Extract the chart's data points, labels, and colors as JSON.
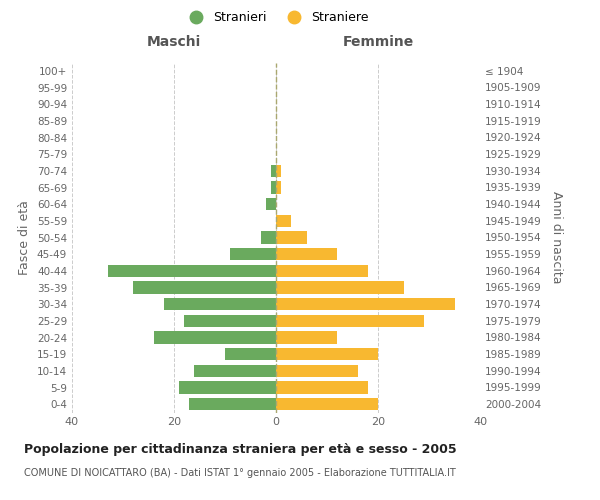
{
  "age_groups": [
    "0-4",
    "5-9",
    "10-14",
    "15-19",
    "20-24",
    "25-29",
    "30-34",
    "35-39",
    "40-44",
    "45-49",
    "50-54",
    "55-59",
    "60-64",
    "65-69",
    "70-74",
    "75-79",
    "80-84",
    "85-89",
    "90-94",
    "95-99",
    "100+"
  ],
  "birth_years": [
    "2000-2004",
    "1995-1999",
    "1990-1994",
    "1985-1989",
    "1980-1984",
    "1975-1979",
    "1970-1974",
    "1965-1969",
    "1960-1964",
    "1955-1959",
    "1950-1954",
    "1945-1949",
    "1940-1944",
    "1935-1939",
    "1930-1934",
    "1925-1929",
    "1920-1924",
    "1915-1919",
    "1910-1914",
    "1905-1909",
    "≤ 1904"
  ],
  "maschi": [
    17,
    19,
    16,
    10,
    24,
    18,
    22,
    28,
    33,
    9,
    3,
    0,
    2,
    1,
    1,
    0,
    0,
    0,
    0,
    0,
    0
  ],
  "femmine": [
    20,
    18,
    16,
    20,
    12,
    29,
    35,
    25,
    18,
    12,
    6,
    3,
    0,
    1,
    1,
    0,
    0,
    0,
    0,
    0,
    0
  ],
  "color_maschi": "#6aaa5e",
  "color_femmine": "#f8b830",
  "xlim": 40,
  "title": "Popolazione per cittadinanza straniera per età e sesso - 2005",
  "subtitle": "COMUNE DI NOICATTARO (BA) - Dati ISTAT 1° gennaio 2005 - Elaborazione TUTTITALIA.IT",
  "ylabel_left": "Fasce di età",
  "ylabel_right": "Anni di nascita",
  "legend_maschi": "Stranieri",
  "legend_femmine": "Straniere",
  "header_left": "Maschi",
  "header_right": "Femmine",
  "background_color": "#ffffff",
  "grid_color": "#cccccc"
}
